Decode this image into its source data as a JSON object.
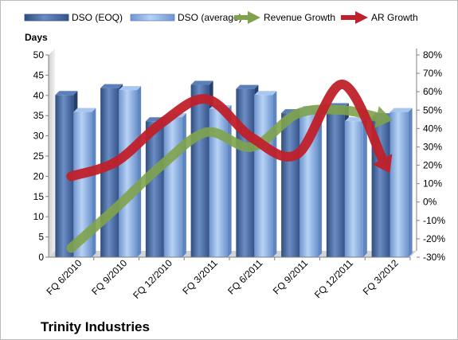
{
  "chart_data": {
    "type": "bar",
    "title": "Trinity Industries",
    "ylabel": "Days",
    "categories": [
      "FQ 6/2010",
      "FQ 9/2010",
      "FQ 12/2010",
      "FQ 3/2011",
      "FQ 6/2011",
      "FQ 9/2011",
      "FQ 12/2011",
      "FQ 3/2012"
    ],
    "ylim": [
      0,
      50
    ],
    "y_ticks": [
      "0",
      "5",
      "10",
      "15",
      "20",
      "25",
      "30",
      "35",
      "40",
      "45",
      "50"
    ],
    "y2lim": [
      -30,
      80
    ],
    "y2_ticks": [
      "-30%",
      "-20%",
      "-10%",
      "0%",
      "10%",
      "20%",
      "30%",
      "40%",
      "50%",
      "60%",
      "70%",
      "80%"
    ],
    "legend_position": "top",
    "grid": false,
    "series": [
      {
        "name": "DSO (EOQ)",
        "type": "bar",
        "axis": "left",
        "color": "#4f6fa3",
        "values": [
          40.9,
          42.6,
          34.4,
          43.4,
          42.4,
          36.4,
          37.9,
          35.4
        ]
      },
      {
        "name": "DSO (average)",
        "type": "bar",
        "axis": "left",
        "color": "#8cb2e6",
        "values": [
          36.7,
          42.1,
          35.4,
          37.4,
          40.9,
          37.2,
          34.4,
          36.7
        ]
      },
      {
        "name": "Revenue Growth",
        "type": "line",
        "axis": "right",
        "color": "#7fa34d",
        "values": [
          -25,
          -3,
          20,
          38,
          30,
          48,
          50,
          45
        ]
      },
      {
        "name": "AR Growth",
        "type": "line",
        "axis": "right",
        "color": "#c0202a",
        "values": [
          14,
          22,
          43,
          56,
          35,
          26,
          64,
          18
        ]
      }
    ]
  }
}
